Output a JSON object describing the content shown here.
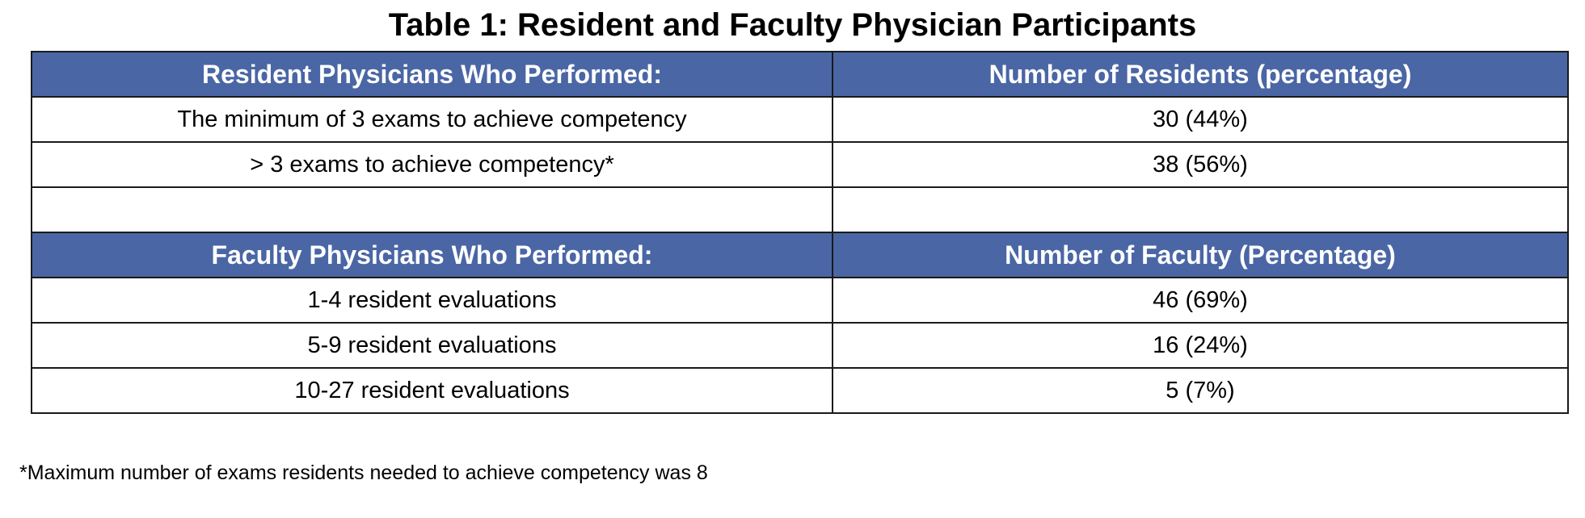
{
  "title": "Table 1: Resident and Faculty Physician Participants",
  "resident_header": {
    "col1": "Resident Physicians Who Performed:",
    "col2": "Number of Residents (percentage)"
  },
  "resident_rows": [
    {
      "label": "The minimum of 3 exams to achieve competency",
      "value": "30 (44%)"
    },
    {
      "label": "> 3 exams to achieve competency*",
      "value": "38 (56%)"
    }
  ],
  "faculty_header": {
    "col1": "Faculty Physicians Who Performed:",
    "col2": "Number of Faculty (Percentage)"
  },
  "faculty_rows": [
    {
      "label": "1-4 resident evaluations",
      "value": "46 (69%)"
    },
    {
      "label": "5-9 resident evaluations",
      "value": "16 (24%)"
    },
    {
      "label": "10-27 resident evaluations",
      "value": "5 (7%)"
    }
  ],
  "footnote": "*Maximum number of exams residents needed to achieve competency was 8",
  "colors": {
    "header_bg": "#4a66a5",
    "header_text": "#ffffff",
    "border": "#1a1a1a"
  }
}
